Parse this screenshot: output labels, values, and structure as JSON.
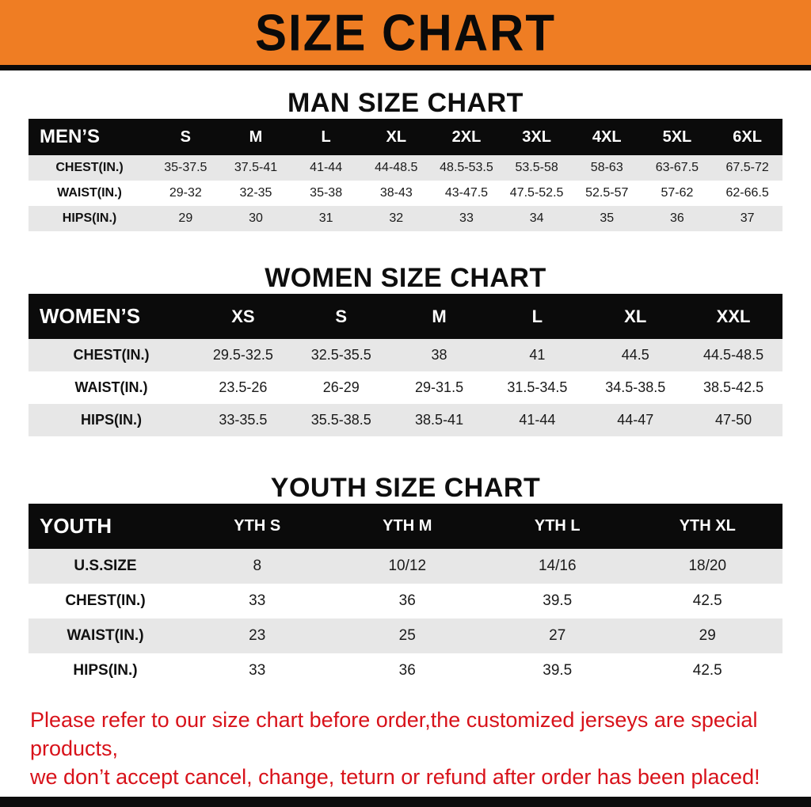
{
  "banner": {
    "title": "SIZE CHART",
    "bg_color": "#ef7d23"
  },
  "men": {
    "heading": "MAN SIZE CHART",
    "table": {
      "label": "MEN’S",
      "columns": [
        "S",
        "M",
        "L",
        "XL",
        "2XL",
        "3XL",
        "4XL",
        "5XL",
        "6XL"
      ],
      "rows": [
        {
          "label": "CHEST(IN.)",
          "values": [
            "35-37.5",
            "37.5-41",
            "41-44",
            "44-48.5",
            "48.5-53.5",
            "53.5-58",
            "58-63",
            "63-67.5",
            "67.5-72"
          ]
        },
        {
          "label": "WAIST(IN.)",
          "values": [
            "29-32",
            "32-35",
            "35-38",
            "38-43",
            "43-47.5",
            "47.5-52.5",
            "52.5-57",
            "57-62",
            "62-66.5"
          ]
        },
        {
          "label": "HIPS(IN.)",
          "values": [
            "29",
            "30",
            "31",
            "32",
            "33",
            "34",
            "35",
            "36",
            "37"
          ]
        }
      ]
    }
  },
  "women": {
    "heading": "WOMEN SIZE CHART",
    "table": {
      "label": "WOMEN’S",
      "columns": [
        "XS",
        "S",
        "M",
        "L",
        "XL",
        "XXL"
      ],
      "rows": [
        {
          "label": "CHEST(IN.)",
          "values": [
            "29.5-32.5",
            "32.5-35.5",
            "38",
            "41",
            "44.5",
            "44.5-48.5"
          ]
        },
        {
          "label": "WAIST(IN.)",
          "values": [
            "23.5-26",
            "26-29",
            "29-31.5",
            "31.5-34.5",
            "34.5-38.5",
            "38.5-42.5"
          ]
        },
        {
          "label": "HIPS(IN.)",
          "values": [
            "33-35.5",
            "35.5-38.5",
            "38.5-41",
            "41-44",
            "44-47",
            "47-50"
          ]
        }
      ]
    }
  },
  "youth": {
    "heading": "YOUTH SIZE CHART",
    "table": {
      "label": "YOUTH",
      "columns": [
        "YTH S",
        "YTH M",
        "YTH L",
        "YTH XL"
      ],
      "rows": [
        {
          "label": "U.S.SIZE",
          "values": [
            "8",
            "10/12",
            "14/16",
            "18/20"
          ]
        },
        {
          "label": "CHEST(IN.)",
          "values": [
            "33",
            "36",
            "39.5",
            "42.5"
          ]
        },
        {
          "label": "WAIST(IN.)",
          "values": [
            "23",
            "25",
            "27",
            "29"
          ]
        },
        {
          "label": "HIPS(IN.)",
          "values": [
            "33",
            "36",
            "39.5",
            "42.5"
          ]
        }
      ]
    }
  },
  "footer": {
    "line1": "Please refer to our size chart before order,the customized jerseys are special products,",
    "line2": "we don’t accept cancel, change, teturn or refund after order has been placed!"
  }
}
